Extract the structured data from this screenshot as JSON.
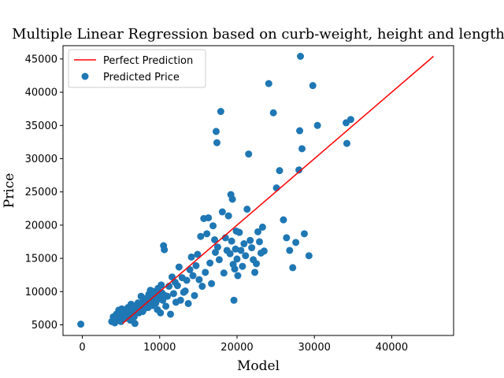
{
  "chart_data": {
    "type": "scatter",
    "title": "Multiple Linear Regression based on curb-weight, height and length",
    "xlabel": "Model",
    "ylabel": "Price",
    "xlim": [
      -2500,
      48000
    ],
    "ylim": [
      3400,
      47000
    ],
    "x_ticks": [
      0,
      10000,
      20000,
      30000,
      40000
    ],
    "x_tick_labels": [
      "0",
      "10000",
      "20000",
      "30000",
      "40000"
    ],
    "y_ticks": [
      5000,
      10000,
      15000,
      20000,
      25000,
      30000,
      35000,
      40000,
      45000
    ],
    "y_tick_labels": [
      "5000",
      "10000",
      "15000",
      "20000",
      "25000",
      "30000",
      "35000",
      "40000",
      "45000"
    ],
    "grid": false,
    "legend_position": "top-left",
    "colors": {
      "points": "#1f77b4",
      "line": "#ff0000"
    },
    "series": [
      {
        "name": "Perfect Prediction",
        "kind": "line",
        "x": [
          5200,
          45400
        ],
        "y": [
          5200,
          45400
        ]
      },
      {
        "name": "Predicted Price",
        "kind": "scatter",
        "points": [
          [
            -200,
            5100
          ],
          [
            3800,
            5500
          ],
          [
            4000,
            6200
          ],
          [
            4200,
            5300
          ],
          [
            4400,
            6600
          ],
          [
            4500,
            5900
          ],
          [
            4700,
            7200
          ],
          [
            4800,
            6300
          ],
          [
            5000,
            5500
          ],
          [
            5100,
            7400
          ],
          [
            5200,
            6800
          ],
          [
            5400,
            5900
          ],
          [
            5500,
            6500
          ],
          [
            5600,
            7000
          ],
          [
            5800,
            6200
          ],
          [
            5900,
            7600
          ],
          [
            6000,
            6100
          ],
          [
            6100,
            6900
          ],
          [
            6200,
            5700
          ],
          [
            6300,
            8100
          ],
          [
            6400,
            7300
          ],
          [
            6500,
            6600
          ],
          [
            6600,
            7500
          ],
          [
            6700,
            6200
          ],
          [
            6800,
            5200
          ],
          [
            6900,
            7900
          ],
          [
            7000,
            6900
          ],
          [
            7100,
            7300
          ],
          [
            7200,
            8300
          ],
          [
            7300,
            6800
          ],
          [
            7400,
            7600
          ],
          [
            7500,
            7100
          ],
          [
            7600,
            9300
          ],
          [
            7700,
            7800
          ],
          [
            7800,
            7000
          ],
          [
            7900,
            8600
          ],
          [
            8000,
            7400
          ],
          [
            8100,
            8200
          ],
          [
            8200,
            7800
          ],
          [
            8300,
            9000
          ],
          [
            8400,
            8400
          ],
          [
            8500,
            7600
          ],
          [
            8600,
            9600
          ],
          [
            8700,
            8100
          ],
          [
            8800,
            10200
          ],
          [
            8900,
            8800
          ],
          [
            9000,
            7900
          ],
          [
            9100,
            9300
          ],
          [
            9200,
            8500
          ],
          [
            9300,
            10000
          ],
          [
            9400,
            9100
          ],
          [
            9500,
            8300
          ],
          [
            9600,
            9800
          ],
          [
            9700,
            7300
          ],
          [
            9800,
            10500
          ],
          [
            9900,
            8900
          ],
          [
            10000,
            9500
          ],
          [
            10100,
            6800
          ],
          [
            10200,
            11000
          ],
          [
            10300,
            9800
          ],
          [
            10400,
            8700
          ],
          [
            10500,
            16900
          ],
          [
            10600,
            16300
          ],
          [
            10700,
            9400
          ],
          [
            10800,
            7800
          ],
          [
            11000,
            9300
          ],
          [
            11200,
            10800
          ],
          [
            11400,
            6600
          ],
          [
            11600,
            12200
          ],
          [
            11800,
            9700
          ],
          [
            12000,
            11400
          ],
          [
            12100,
            8400
          ],
          [
            12300,
            10900
          ],
          [
            12500,
            13700
          ],
          [
            12700,
            8700
          ],
          [
            12900,
            12100
          ],
          [
            13100,
            9900
          ],
          [
            13300,
            10100
          ],
          [
            13500,
            11700
          ],
          [
            13700,
            8200
          ],
          [
            13900,
            13300
          ],
          [
            14100,
            15200
          ],
          [
            14300,
            12400
          ],
          [
            14500,
            9400
          ],
          [
            14700,
            13900
          ],
          [
            14900,
            15600
          ],
          [
            15100,
            11800
          ],
          [
            15300,
            18300
          ],
          [
            15500,
            10800
          ],
          [
            15700,
            21000
          ],
          [
            15900,
            12900
          ],
          [
            16100,
            18700
          ],
          [
            16300,
            21100
          ],
          [
            16500,
            14300
          ],
          [
            16700,
            11200
          ],
          [
            16900,
            19900
          ],
          [
            17100,
            17800
          ],
          [
            17200,
            15900
          ],
          [
            17300,
            34100
          ],
          [
            17400,
            32400
          ],
          [
            17500,
            16700
          ],
          [
            17700,
            14800
          ],
          [
            17900,
            37100
          ],
          [
            18100,
            22000
          ],
          [
            18300,
            12800
          ],
          [
            18500,
            18100
          ],
          [
            18700,
            16200
          ],
          [
            18900,
            21400
          ],
          [
            19100,
            15700
          ],
          [
            19200,
            24600
          ],
          [
            19300,
            17600
          ],
          [
            19400,
            23900
          ],
          [
            19500,
            14100
          ],
          [
            19600,
            8700
          ],
          [
            19700,
            13400
          ],
          [
            19800,
            16400
          ],
          [
            19900,
            19100
          ],
          [
            20000,
            14900
          ],
          [
            20100,
            12400
          ],
          [
            20300,
            18900
          ],
          [
            20500,
            16200
          ],
          [
            20700,
            13800
          ],
          [
            20900,
            17200
          ],
          [
            21100,
            15400
          ],
          [
            21300,
            22400
          ],
          [
            21500,
            30700
          ],
          [
            21700,
            17700
          ],
          [
            21900,
            16600
          ],
          [
            22100,
            14800
          ],
          [
            22300,
            12900
          ],
          [
            22500,
            14200
          ],
          [
            22700,
            19000
          ],
          [
            22900,
            17500
          ],
          [
            23100,
            15800
          ],
          [
            23300,
            19700
          ],
          [
            23500,
            16100
          ],
          [
            24100,
            41300
          ],
          [
            24700,
            36900
          ],
          [
            25100,
            25600
          ],
          [
            25500,
            28200
          ],
          [
            26000,
            20800
          ],
          [
            26400,
            18100
          ],
          [
            26800,
            16200
          ],
          [
            27200,
            13600
          ],
          [
            27600,
            17400
          ],
          [
            28000,
            28300
          ],
          [
            28100,
            34200
          ],
          [
            28200,
            45400
          ],
          [
            28400,
            31500
          ],
          [
            28700,
            18700
          ],
          [
            29300,
            15400
          ],
          [
            29800,
            41000
          ],
          [
            30400,
            35000
          ],
          [
            34100,
            35400
          ],
          [
            34200,
            32300
          ],
          [
            34700,
            35900
          ]
        ]
      }
    ]
  }
}
